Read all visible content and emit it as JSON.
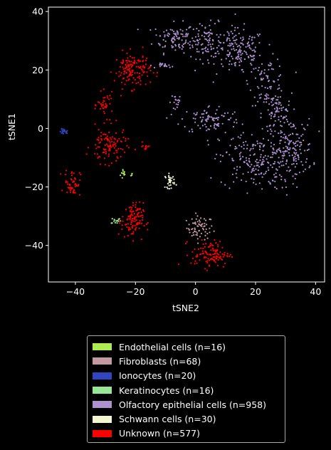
{
  "chart_data": {
    "type": "scatter",
    "xlabel": "tSNE2",
    "ylabel": "tSNE1",
    "xlim": [
      -49,
      43
    ],
    "ylim": [
      -52.5,
      41.5
    ],
    "xticks": [
      -40,
      -20,
      0,
      20,
      40
    ],
    "yticks": [
      40,
      20,
      0,
      -20,
      -40
    ],
    "xtick_labels": [
      "−40",
      "−20",
      "0",
      "20",
      "40"
    ],
    "ytick_labels": [
      "40",
      "20",
      "0",
      "−20",
      "−40"
    ],
    "legend_position": "below",
    "series": [
      {
        "name": "Endothelial cells (n=16)",
        "color": "#aeea52",
        "clusters": [
          {
            "cx": -24,
            "cy": -15.5,
            "sx": 0.5,
            "sy": 1.0,
            "n": 12
          },
          {
            "cx": -21.5,
            "cy": -15.8,
            "sx": 0.3,
            "sy": 0.3,
            "n": 4
          }
        ]
      },
      {
        "name": "Fibroblasts (n=68)",
        "color": "#c49aa2",
        "clusters": [
          {
            "cx": 1.5,
            "cy": -34,
            "sx": 2.2,
            "sy": 2.0,
            "n": 68
          }
        ]
      },
      {
        "name": "Ionocytes (n=20)",
        "color": "#3145c0",
        "clusters": [
          {
            "cx": -43.8,
            "cy": -1.2,
            "sx": 0.7,
            "sy": 0.5,
            "n": 20
          }
        ]
      },
      {
        "name": "Keratinocytes (n=16)",
        "color": "#96e896",
        "clusters": [
          {
            "cx": -26.5,
            "cy": -31.5,
            "sx": 0.8,
            "sy": 0.6,
            "n": 16
          }
        ]
      },
      {
        "name": "Olfactory epithelial cells (n=958)",
        "color": "#ad92cf",
        "clusters": [
          {
            "cx": -7,
            "cy": 31,
            "sx": 3.5,
            "sy": 2.5,
            "n": 90
          },
          {
            "cx": 4,
            "cy": 30,
            "sx": 4,
            "sy": 3,
            "n": 110
          },
          {
            "cx": 15,
            "cy": 26,
            "sx": 4,
            "sy": 4,
            "n": 140
          },
          {
            "cx": 24,
            "cy": 16,
            "sx": 3,
            "sy": 4,
            "n": 80
          },
          {
            "cx": 27,
            "cy": 5,
            "sx": 2.5,
            "sy": 3.5,
            "n": 70
          },
          {
            "cx": 5,
            "cy": 3,
            "sx": 5,
            "sy": 2.5,
            "n": 90
          },
          {
            "cx": 20,
            "cy": -11,
            "sx": 6,
            "sy": 5,
            "n": 200
          },
          {
            "cx": 32,
            "cy": -7,
            "sx": 3.5,
            "sy": 5,
            "n": 140
          },
          {
            "cx": -6,
            "cy": 9,
            "sx": 1.5,
            "sy": 1.5,
            "n": 18
          },
          {
            "cx": -10,
            "cy": 21.5,
            "sx": 1.3,
            "sy": 0.4,
            "n": 20
          }
        ]
      },
      {
        "name": "Schwann cells (n=30)",
        "color": "#f2f7d1",
        "clusters": [
          {
            "cx": -8.5,
            "cy": -18,
            "sx": 0.8,
            "sy": 1.2,
            "n": 30
          }
        ]
      },
      {
        "name": "Unknown (n=577)",
        "color": "#ff0000",
        "clusters": [
          {
            "cx": -21,
            "cy": 20,
            "sx": 3,
            "sy": 3,
            "n": 140
          },
          {
            "cx": -30,
            "cy": 8,
            "sx": 1.3,
            "sy": 2,
            "n": 40
          },
          {
            "cx": -29,
            "cy": -6,
            "sx": 3,
            "sy": 3,
            "n": 110
          },
          {
            "cx": -16.5,
            "cy": -6,
            "sx": 1,
            "sy": 0.8,
            "n": 12
          },
          {
            "cx": -41,
            "cy": -18.5,
            "sx": 1.3,
            "sy": 2.3,
            "n": 50
          },
          {
            "cx": -21,
            "cy": -31.5,
            "sx": 1.8,
            "sy": 3,
            "n": 110
          },
          {
            "cx": 5,
            "cy": -43,
            "sx": 3.2,
            "sy": 2.3,
            "n": 115
          }
        ]
      }
    ]
  }
}
